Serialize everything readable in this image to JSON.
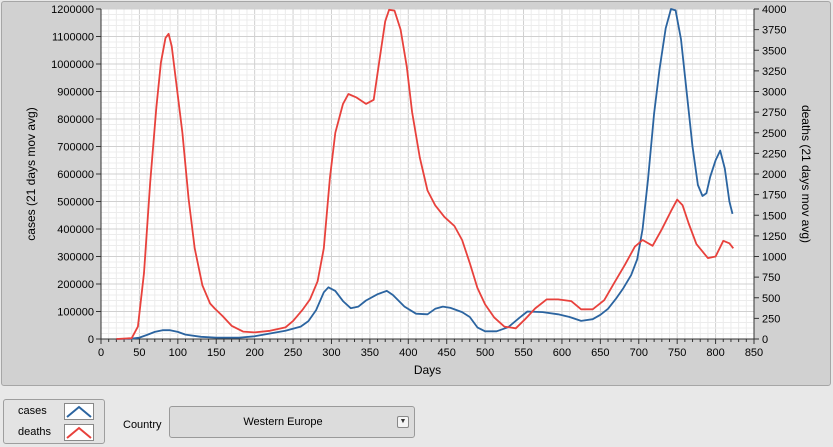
{
  "chart_data": {
    "type": "line",
    "xlabel": "Days",
    "ylabel_left": "cases  (21 days mov avg)",
    "ylabel_right": "deaths  (21 days mov avg)",
    "xlim": [
      0,
      850
    ],
    "ylim_left": [
      0,
      1200000
    ],
    "ylim_right": [
      0,
      4000
    ],
    "x_ticks": [
      0,
      50,
      100,
      150,
      200,
      250,
      300,
      350,
      400,
      450,
      500,
      550,
      600,
      650,
      700,
      750,
      800,
      850
    ],
    "y_ticks_left": [
      0,
      100000,
      200000,
      300000,
      400000,
      500000,
      600000,
      700000,
      800000,
      900000,
      1000000,
      1100000,
      1200000
    ],
    "y_ticks_right": [
      0,
      250,
      500,
      750,
      1000,
      1250,
      1500,
      1750,
      2000,
      2250,
      2500,
      2750,
      3000,
      3250,
      3500,
      3750,
      4000
    ],
    "grid": true,
    "series": [
      {
        "name": "cases",
        "axis": "left",
        "color": "#2b64a0",
        "points": [
          [
            20,
            0
          ],
          [
            40,
            1000
          ],
          [
            50,
            5000
          ],
          [
            60,
            15000
          ],
          [
            70,
            26000
          ],
          [
            80,
            32000
          ],
          [
            90,
            32000
          ],
          [
            100,
            26000
          ],
          [
            110,
            16000
          ],
          [
            130,
            8000
          ],
          [
            150,
            5000
          ],
          [
            180,
            5000
          ],
          [
            200,
            10000
          ],
          [
            220,
            20000
          ],
          [
            240,
            30000
          ],
          [
            260,
            45000
          ],
          [
            270,
            65000
          ],
          [
            280,
            105000
          ],
          [
            290,
            170000
          ],
          [
            296,
            188000
          ],
          [
            305,
            175000
          ],
          [
            315,
            138000
          ],
          [
            325,
            112000
          ],
          [
            335,
            118000
          ],
          [
            345,
            140000
          ],
          [
            360,
            163000
          ],
          [
            372,
            175000
          ],
          [
            380,
            160000
          ],
          [
            395,
            118000
          ],
          [
            410,
            92000
          ],
          [
            425,
            90000
          ],
          [
            435,
            110000
          ],
          [
            445,
            118000
          ],
          [
            455,
            113000
          ],
          [
            470,
            98000
          ],
          [
            480,
            80000
          ],
          [
            490,
            42000
          ],
          [
            500,
            28000
          ],
          [
            515,
            28000
          ],
          [
            530,
            43000
          ],
          [
            545,
            78000
          ],
          [
            555,
            100000
          ],
          [
            575,
            98000
          ],
          [
            595,
            90000
          ],
          [
            610,
            80000
          ],
          [
            625,
            66000
          ],
          [
            640,
            72000
          ],
          [
            650,
            88000
          ],
          [
            660,
            110000
          ],
          [
            670,
            145000
          ],
          [
            680,
            185000
          ],
          [
            690,
            232000
          ],
          [
            698,
            290000
          ],
          [
            705,
            400000
          ],
          [
            712,
            580000
          ],
          [
            720,
            820000
          ],
          [
            727,
            980000
          ],
          [
            735,
            1130000
          ],
          [
            742,
            1200000
          ],
          [
            748,
            1195000
          ],
          [
            755,
            1090000
          ],
          [
            763,
            880000
          ],
          [
            770,
            700000
          ],
          [
            777,
            560000
          ],
          [
            783,
            520000
          ],
          [
            788,
            530000
          ],
          [
            793,
            590000
          ],
          [
            800,
            650000
          ],
          [
            806,
            685000
          ],
          [
            812,
            620000
          ],
          [
            818,
            500000
          ],
          [
            822,
            455000
          ]
        ]
      },
      {
        "name": "deaths",
        "axis": "right",
        "color": "#e8413c",
        "points": [
          [
            20,
            0
          ],
          [
            40,
            10
          ],
          [
            48,
            150
          ],
          [
            56,
            800
          ],
          [
            64,
            1900
          ],
          [
            72,
            2800
          ],
          [
            78,
            3350
          ],
          [
            84,
            3650
          ],
          [
            88,
            3700
          ],
          [
            92,
            3550
          ],
          [
            98,
            3100
          ],
          [
            106,
            2500
          ],
          [
            114,
            1700
          ],
          [
            122,
            1100
          ],
          [
            132,
            650
          ],
          [
            142,
            430
          ],
          [
            148,
            370
          ],
          [
            158,
            280
          ],
          [
            170,
            160
          ],
          [
            185,
            90
          ],
          [
            200,
            80
          ],
          [
            220,
            100
          ],
          [
            240,
            140
          ],
          [
            250,
            220
          ],
          [
            262,
            350
          ],
          [
            272,
            480
          ],
          [
            282,
            700
          ],
          [
            290,
            1100
          ],
          [
            298,
            1950
          ],
          [
            305,
            2500
          ],
          [
            315,
            2850
          ],
          [
            322,
            2970
          ],
          [
            332,
            2930
          ],
          [
            345,
            2850
          ],
          [
            355,
            2900
          ],
          [
            362,
            3350
          ],
          [
            370,
            3850
          ],
          [
            375,
            3990
          ],
          [
            382,
            3980
          ],
          [
            390,
            3750
          ],
          [
            398,
            3300
          ],
          [
            405,
            2750
          ],
          [
            415,
            2200
          ],
          [
            425,
            1800
          ],
          [
            435,
            1620
          ],
          [
            447,
            1480
          ],
          [
            460,
            1370
          ],
          [
            470,
            1200
          ],
          [
            480,
            920
          ],
          [
            490,
            620
          ],
          [
            500,
            420
          ],
          [
            512,
            260
          ],
          [
            525,
            150
          ],
          [
            540,
            130
          ],
          [
            552,
            240
          ],
          [
            565,
            370
          ],
          [
            580,
            480
          ],
          [
            595,
            480
          ],
          [
            612,
            460
          ],
          [
            625,
            360
          ],
          [
            640,
            360
          ],
          [
            655,
            470
          ],
          [
            668,
            680
          ],
          [
            682,
            900
          ],
          [
            695,
            1120
          ],
          [
            705,
            1200
          ],
          [
            718,
            1130
          ],
          [
            730,
            1330
          ],
          [
            742,
            1550
          ],
          [
            750,
            1690
          ],
          [
            757,
            1620
          ],
          [
            765,
            1400
          ],
          [
            775,
            1150
          ],
          [
            790,
            980
          ],
          [
            800,
            1000
          ],
          [
            810,
            1190
          ],
          [
            818,
            1160
          ],
          [
            823,
            1100
          ]
        ]
      }
    ]
  },
  "legend": {
    "cases_label": "cases",
    "deaths_label": "deaths"
  },
  "controls": {
    "country_label": "Country",
    "country_value": "Western Europe"
  }
}
